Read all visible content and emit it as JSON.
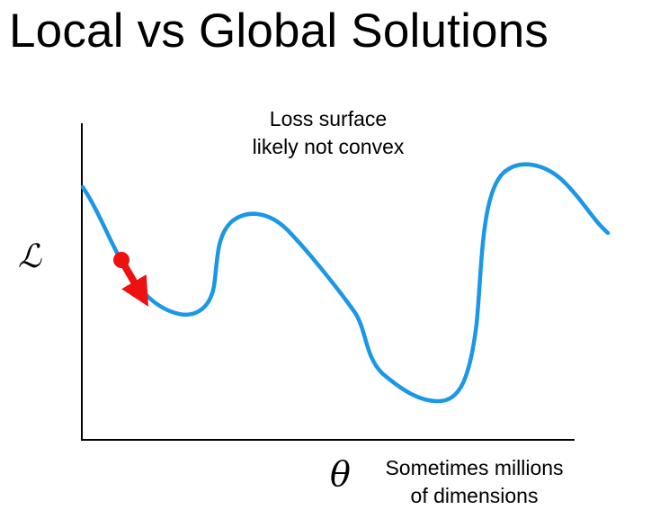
{
  "slide": {
    "title": "Local vs Global Solutions"
  },
  "diagram": {
    "y_axis_symbol": "ℒ",
    "x_axis_symbol": "θ",
    "top_annotation": [
      "Loss surface",
      "likely not convex"
    ],
    "bottom_annotation": [
      "Sometimes millions",
      "of dimensions"
    ],
    "colors": {
      "curve": "#1a98e6",
      "marker": "#ee1111",
      "axes": "#000000"
    }
  }
}
